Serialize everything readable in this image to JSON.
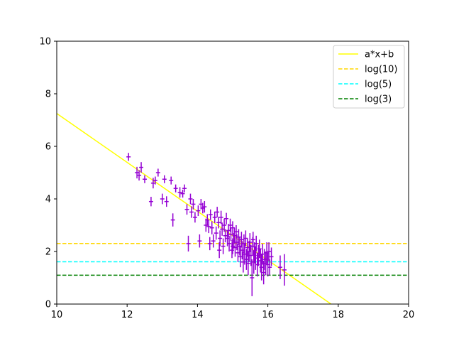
{
  "chart_data": {
    "type": "scatter",
    "xlim": [
      10,
      20
    ],
    "ylim": [
      0,
      10
    ],
    "x_ticks": [
      "10",
      "12",
      "14",
      "16",
      "18",
      "20"
    ],
    "y_ticks": [
      "0",
      "2",
      "4",
      "6",
      "8",
      "10"
    ],
    "grid": false,
    "legend_position": "top-right",
    "fit_line": {
      "name": "a*x+b",
      "slope": -0.93,
      "intercept": 16.55,
      "color": "#ffff00"
    },
    "hlines": [
      {
        "name": "log(10)",
        "y": 2.303,
        "color": "#ffd700"
      },
      {
        "name": "log(5)",
        "y": 1.609,
        "color": "#00ffff"
      },
      {
        "name": "log(3)",
        "y": 1.099,
        "color": "#008000"
      }
    ],
    "points_color": "#9400d3",
    "points": [
      [
        12.04,
        5.6,
        0.06,
        0.15
      ],
      [
        12.28,
        5.0,
        0.06,
        0.22
      ],
      [
        12.34,
        4.9,
        0.06,
        0.2
      ],
      [
        12.4,
        5.2,
        0.06,
        0.2
      ],
      [
        12.5,
        4.75,
        0.06,
        0.15
      ],
      [
        12.68,
        3.9,
        0.06,
        0.18
      ],
      [
        12.74,
        4.6,
        0.06,
        0.2
      ],
      [
        12.8,
        4.7,
        0.06,
        0.15
      ],
      [
        12.88,
        5.0,
        0.06,
        0.15
      ],
      [
        13.0,
        4.0,
        0.06,
        0.2
      ],
      [
        13.06,
        4.75,
        0.06,
        0.15
      ],
      [
        13.12,
        3.9,
        0.06,
        0.2
      ],
      [
        13.25,
        4.7,
        0.06,
        0.15
      ],
      [
        13.3,
        3.2,
        0.06,
        0.25
      ],
      [
        13.38,
        4.4,
        0.06,
        0.15
      ],
      [
        13.5,
        4.25,
        0.06,
        0.2
      ],
      [
        13.58,
        4.2,
        0.06,
        0.15
      ],
      [
        13.63,
        4.4,
        0.06,
        0.15
      ],
      [
        13.7,
        3.6,
        0.06,
        0.2
      ],
      [
        13.74,
        2.3,
        0.06,
        0.3
      ],
      [
        13.8,
        4.0,
        0.06,
        0.2
      ],
      [
        13.83,
        3.5,
        0.06,
        0.22
      ],
      [
        13.88,
        3.8,
        0.06,
        0.2
      ],
      [
        13.93,
        3.3,
        0.06,
        0.2
      ],
      [
        14.02,
        3.55,
        0.06,
        0.2
      ],
      [
        14.06,
        2.4,
        0.06,
        0.25
      ],
      [
        14.1,
        3.8,
        0.06,
        0.2
      ],
      [
        14.15,
        3.65,
        0.06,
        0.2
      ],
      [
        14.2,
        3.7,
        0.06,
        0.22
      ],
      [
        14.24,
        3.0,
        0.06,
        0.25
      ],
      [
        14.28,
        3.2,
        0.06,
        0.22
      ],
      [
        14.32,
        2.95,
        0.06,
        0.25
      ],
      [
        14.37,
        3.4,
        0.06,
        0.2
      ],
      [
        14.41,
        2.9,
        0.06,
        0.25
      ],
      [
        14.45,
        2.4,
        0.06,
        0.25
      ],
      [
        14.49,
        3.3,
        0.06,
        0.22
      ],
      [
        14.53,
        2.7,
        0.06,
        0.25
      ],
      [
        14.56,
        3.5,
        0.06,
        0.2
      ],
      [
        14.6,
        3.1,
        0.06,
        0.22
      ],
      [
        14.64,
        2.5,
        0.06,
        0.3
      ],
      [
        14.67,
        3.3,
        0.06,
        0.25
      ],
      [
        14.7,
        2.85,
        0.06,
        0.25
      ],
      [
        14.73,
        2.2,
        0.06,
        0.3
      ],
      [
        14.76,
        3.0,
        0.06,
        0.25
      ],
      [
        14.79,
        2.6,
        0.06,
        0.25
      ],
      [
        14.82,
        3.25,
        0.06,
        0.22
      ],
      [
        14.85,
        2.5,
        0.06,
        0.3
      ],
      [
        14.88,
        2.8,
        0.06,
        0.25
      ],
      [
        14.9,
        2.3,
        0.06,
        0.3
      ],
      [
        14.93,
        3.0,
        0.06,
        0.25
      ],
      [
        14.95,
        2.65,
        0.06,
        0.25
      ],
      [
        14.98,
        2.05,
        0.06,
        0.3
      ],
      [
        15.0,
        2.9,
        0.06,
        0.25
      ],
      [
        15.02,
        2.4,
        0.06,
        0.3
      ],
      [
        15.05,
        2.6,
        0.06,
        0.3
      ],
      [
        15.07,
        2.15,
        0.06,
        0.35
      ],
      [
        15.1,
        2.75,
        0.06,
        0.25
      ],
      [
        15.12,
        2.35,
        0.06,
        0.3
      ],
      [
        15.15,
        1.95,
        0.06,
        0.35
      ],
      [
        15.17,
        2.55,
        0.06,
        0.3
      ],
      [
        15.2,
        2.2,
        0.06,
        0.35
      ],
      [
        15.22,
        1.8,
        0.06,
        0.4
      ],
      [
        15.25,
        2.45,
        0.06,
        0.3
      ],
      [
        15.27,
        2.05,
        0.06,
        0.35
      ],
      [
        15.3,
        1.6,
        0.06,
        0.4
      ],
      [
        15.32,
        2.3,
        0.06,
        0.35
      ],
      [
        15.34,
        1.9,
        0.06,
        0.4
      ],
      [
        15.37,
        2.5,
        0.06,
        0.3
      ],
      [
        15.39,
        1.7,
        0.06,
        0.4
      ],
      [
        15.42,
        2.15,
        0.06,
        0.35
      ],
      [
        15.44,
        1.55,
        0.06,
        0.45
      ],
      [
        15.47,
        2.0,
        0.06,
        0.4
      ],
      [
        15.49,
        2.35,
        0.06,
        0.35
      ],
      [
        15.52,
        1.85,
        0.06,
        0.4
      ],
      [
        15.55,
        1.0,
        0.06,
        0.7
      ],
      [
        15.57,
        2.2,
        0.06,
        0.35
      ],
      [
        15.6,
        1.6,
        0.06,
        0.45
      ],
      [
        15.62,
        1.95,
        0.06,
        0.4
      ],
      [
        15.65,
        1.75,
        0.06,
        0.45
      ],
      [
        15.67,
        2.3,
        0.06,
        0.3
      ],
      [
        15.7,
        1.5,
        0.06,
        0.45
      ],
      [
        15.73,
        1.85,
        0.06,
        0.4
      ],
      [
        15.76,
        2.1,
        0.06,
        0.35
      ],
      [
        15.79,
        1.65,
        0.06,
        0.45
      ],
      [
        15.82,
        1.4,
        0.06,
        0.5
      ],
      [
        15.85,
        1.9,
        0.06,
        0.4
      ],
      [
        15.88,
        1.2,
        0.06,
        0.45
      ],
      [
        15.9,
        1.7,
        0.06,
        0.4
      ],
      [
        15.94,
        1.55,
        0.06,
        0.45
      ],
      [
        15.97,
        1.95,
        0.06,
        0.4
      ],
      [
        16.0,
        1.5,
        0.06,
        0.45
      ],
      [
        16.03,
        2.0,
        0.06,
        0.35
      ],
      [
        16.1,
        1.8,
        0.06,
        0.35
      ],
      [
        16.35,
        1.4,
        0.06,
        0.45
      ],
      [
        16.47,
        1.3,
        0.06,
        0.6
      ],
      [
        14.35,
        2.3,
        0.06,
        0.25
      ],
      [
        15.0,
        2.2,
        0.06,
        0.3
      ],
      [
        15.58,
        2.45,
        0.06,
        0.3
      ],
      [
        16.05,
        1.4,
        0.06,
        0.3
      ],
      [
        14.62,
        2.05,
        0.06,
        0.3
      ]
    ]
  }
}
